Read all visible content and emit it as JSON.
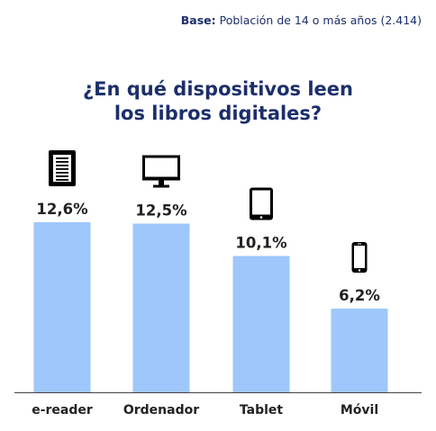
{
  "base": {
    "label": "Base:",
    "text": "Población de 14 o más años (2.414)"
  },
  "title_line1": "¿En qué dispositivos leen",
  "title_line2": "los libros digitales?",
  "colors": {
    "bar": "#9ec7fb",
    "text": "#222222",
    "title": "#1c2f6b",
    "axis": "#444444"
  },
  "chart_data": {
    "type": "bar",
    "title": "¿En qué dispositivos leen los libros digitales?",
    "categories": [
      "e-reader",
      "Ordenador",
      "Tablet",
      "Móvil"
    ],
    "values": [
      12.6,
      12.5,
      10.1,
      6.2
    ],
    "value_labels": [
      "12,6%",
      "12,5%",
      "10,1%",
      "6,2%"
    ],
    "icons": [
      "ereader-icon",
      "monitor-icon",
      "tablet-icon",
      "mobile-icon"
    ],
    "xlabel": "",
    "ylabel": "",
    "ylim": [
      0,
      20
    ],
    "grid": false,
    "legend": "none"
  }
}
